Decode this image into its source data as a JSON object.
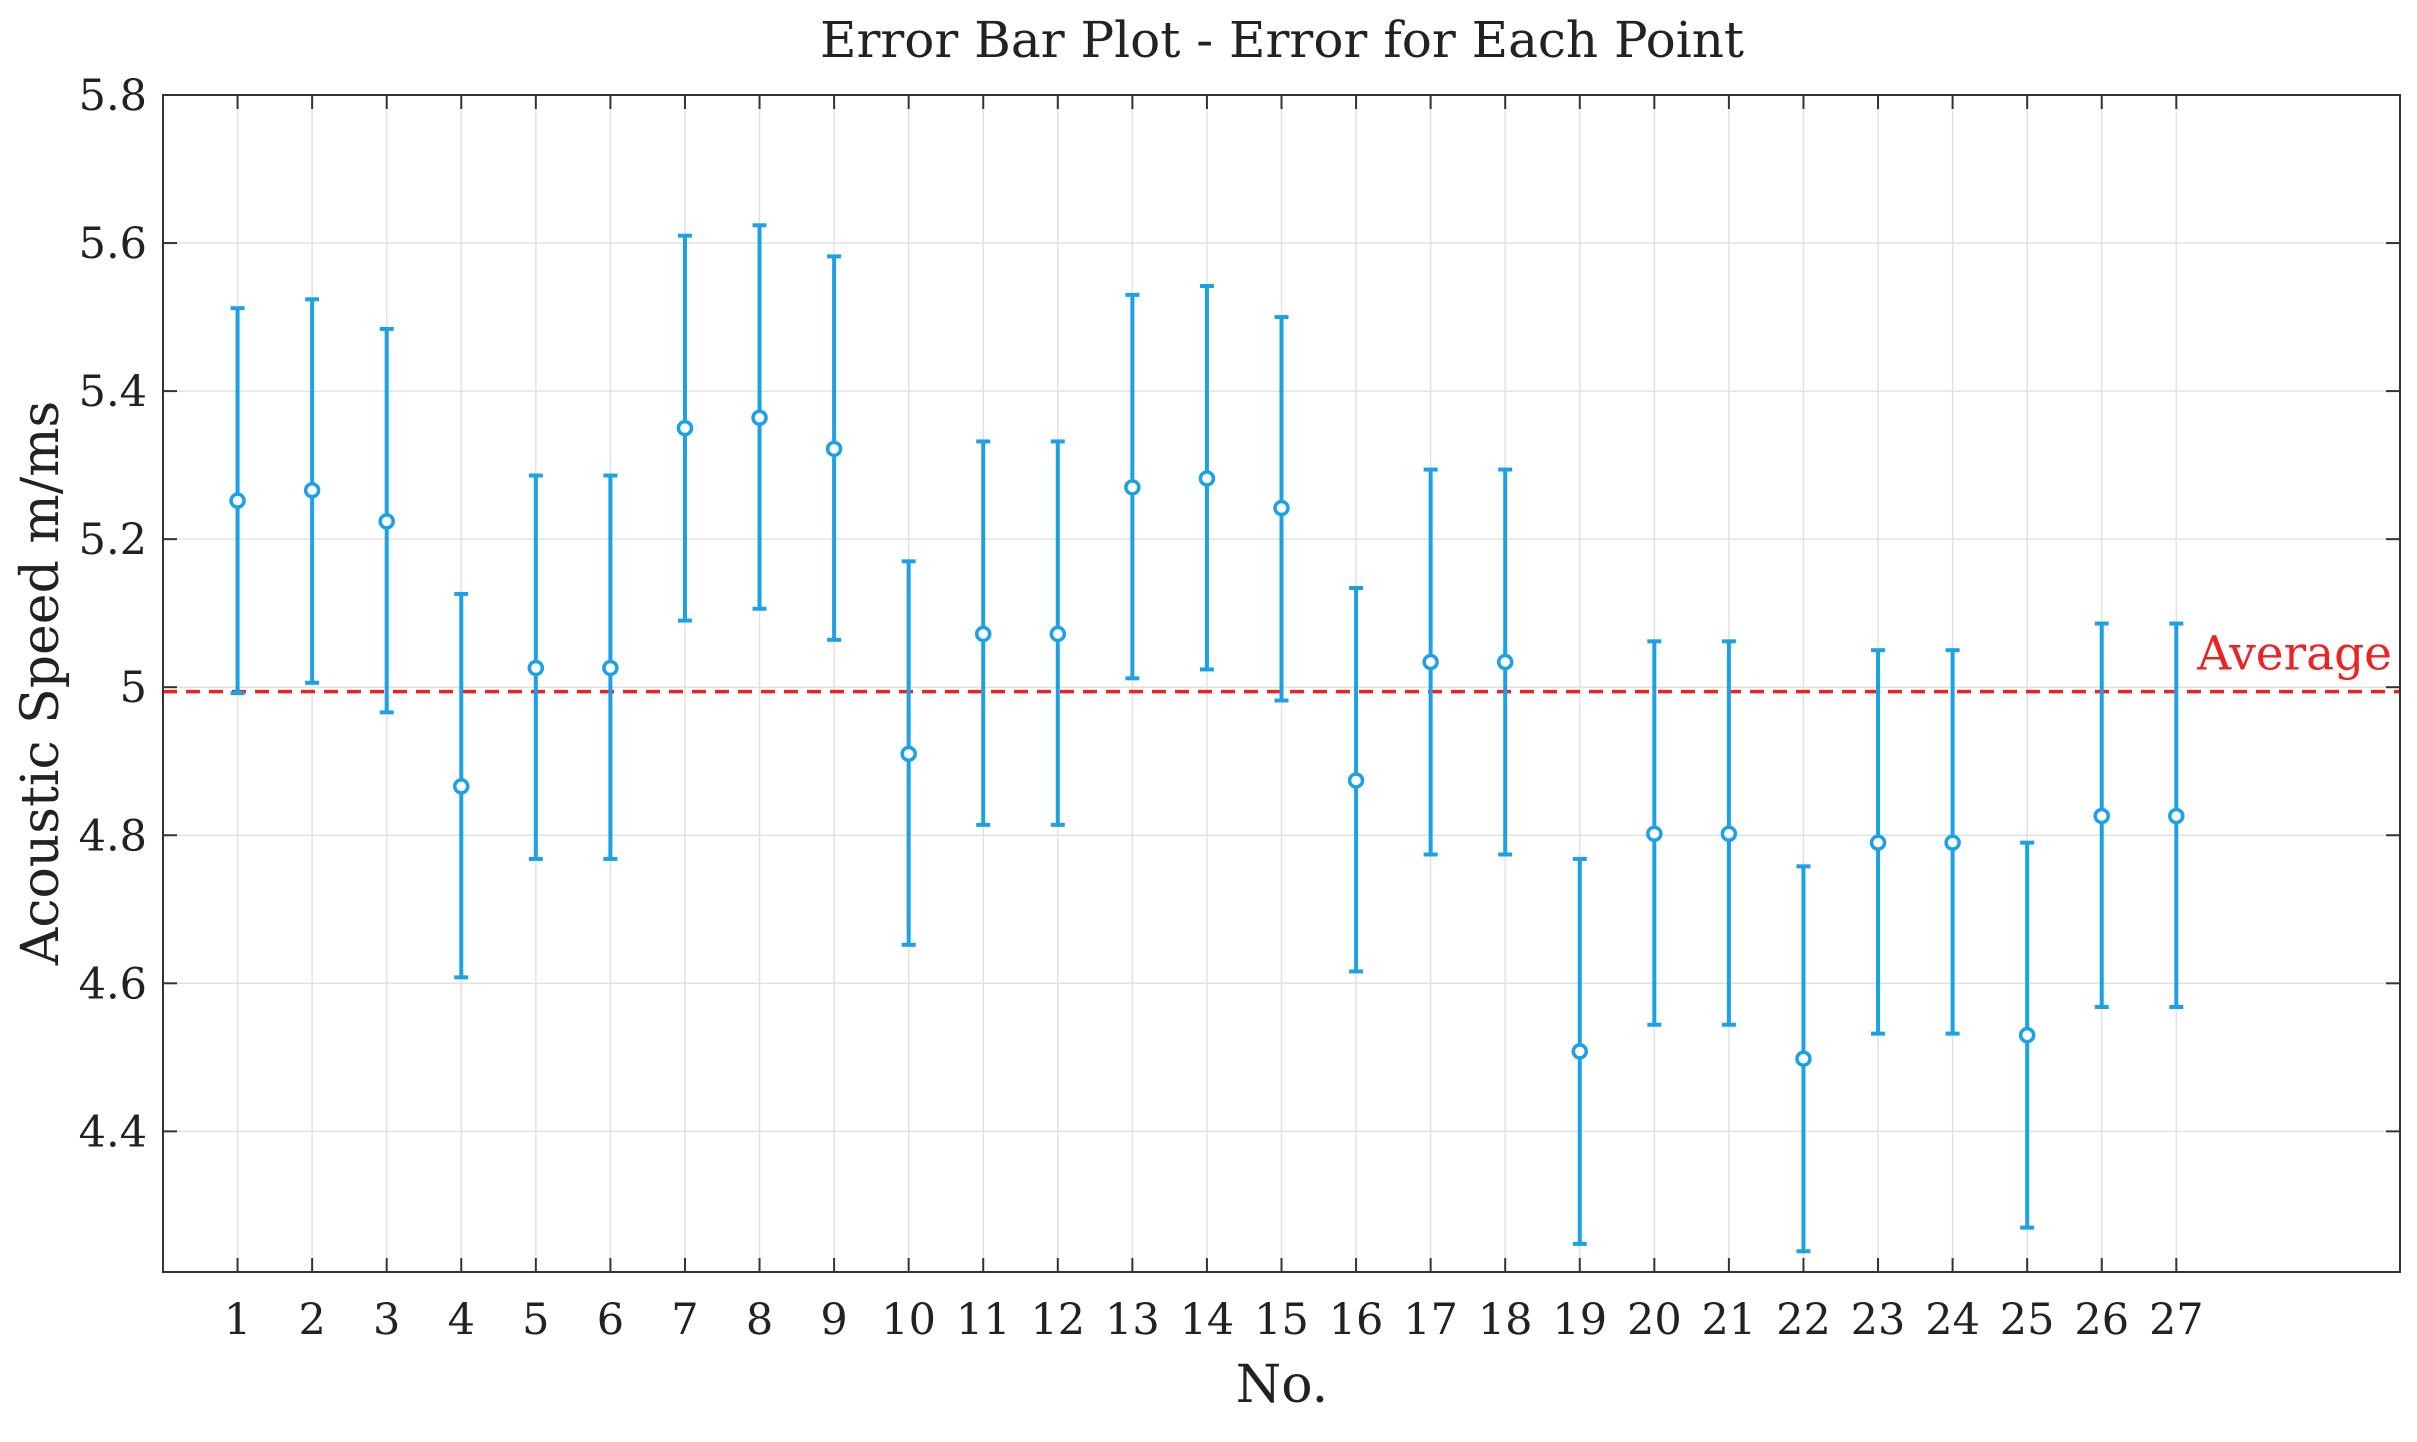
{
  "chart_data": {
    "type": "scatter",
    "title": "Error Bar Plot - Error for Each Point",
    "xlabel": "No.",
    "ylabel": "Acoustic Speed m/ms",
    "xlim": [
      0,
      30
    ],
    "ylim": [
      4.21,
      5.8
    ],
    "x_ticks": [
      "1",
      "2",
      "3",
      "4",
      "5",
      "6",
      "7",
      "8",
      "9",
      "10",
      "11",
      "12",
      "13",
      "14",
      "15",
      "16",
      "17",
      "18",
      "19",
      "20",
      "21",
      "22",
      "23",
      "24",
      "25",
      "26",
      "27"
    ],
    "y_ticks": [
      "4.4",
      "4.6",
      "4.8",
      "5",
      "5.2",
      "5.4",
      "5.6",
      "5.8"
    ],
    "y_tick_values": [
      4.4,
      4.6,
      4.8,
      5.0,
      5.2,
      5.4,
      5.6,
      5.8
    ],
    "grid": true,
    "series": [
      {
        "color": "#1da1e6",
        "marker": "circle",
        "x": [
          1,
          2,
          3,
          4,
          5,
          6,
          7,
          8,
          9,
          10,
          11,
          12,
          13,
          14,
          15,
          16,
          17,
          18,
          19,
          20,
          21,
          22,
          23,
          24,
          25,
          26,
          27
        ],
        "y": [
          5.252,
          5.266,
          5.224,
          4.866,
          5.026,
          5.026,
          5.35,
          5.364,
          5.322,
          4.91,
          5.072,
          5.072,
          5.27,
          5.282,
          5.242,
          4.874,
          5.034,
          5.034,
          4.508,
          4.802,
          4.802,
          4.498,
          4.79,
          4.79,
          4.53,
          4.826,
          4.826
        ],
        "lower": [
          4.992,
          5.006,
          4.966,
          4.608,
          4.768,
          4.768,
          5.09,
          5.106,
          5.064,
          4.652,
          4.814,
          4.814,
          5.012,
          5.024,
          4.982,
          4.616,
          4.774,
          4.774,
          4.248,
          4.544,
          4.544,
          4.238,
          4.532,
          4.532,
          4.27,
          4.568,
          4.568
        ],
        "upper": [
          5.512,
          5.524,
          5.484,
          5.126,
          5.286,
          5.286,
          5.61,
          5.624,
          5.582,
          5.17,
          5.332,
          5.332,
          5.53,
          5.542,
          5.5,
          5.134,
          5.294,
          5.294,
          4.768,
          5.062,
          5.062,
          4.758,
          5.05,
          5.05,
          4.79,
          5.086,
          5.086
        ]
      }
    ],
    "reference_line": {
      "y": 4.994,
      "label": "Average",
      "color": "#ee2222",
      "style": "dashed"
    }
  }
}
